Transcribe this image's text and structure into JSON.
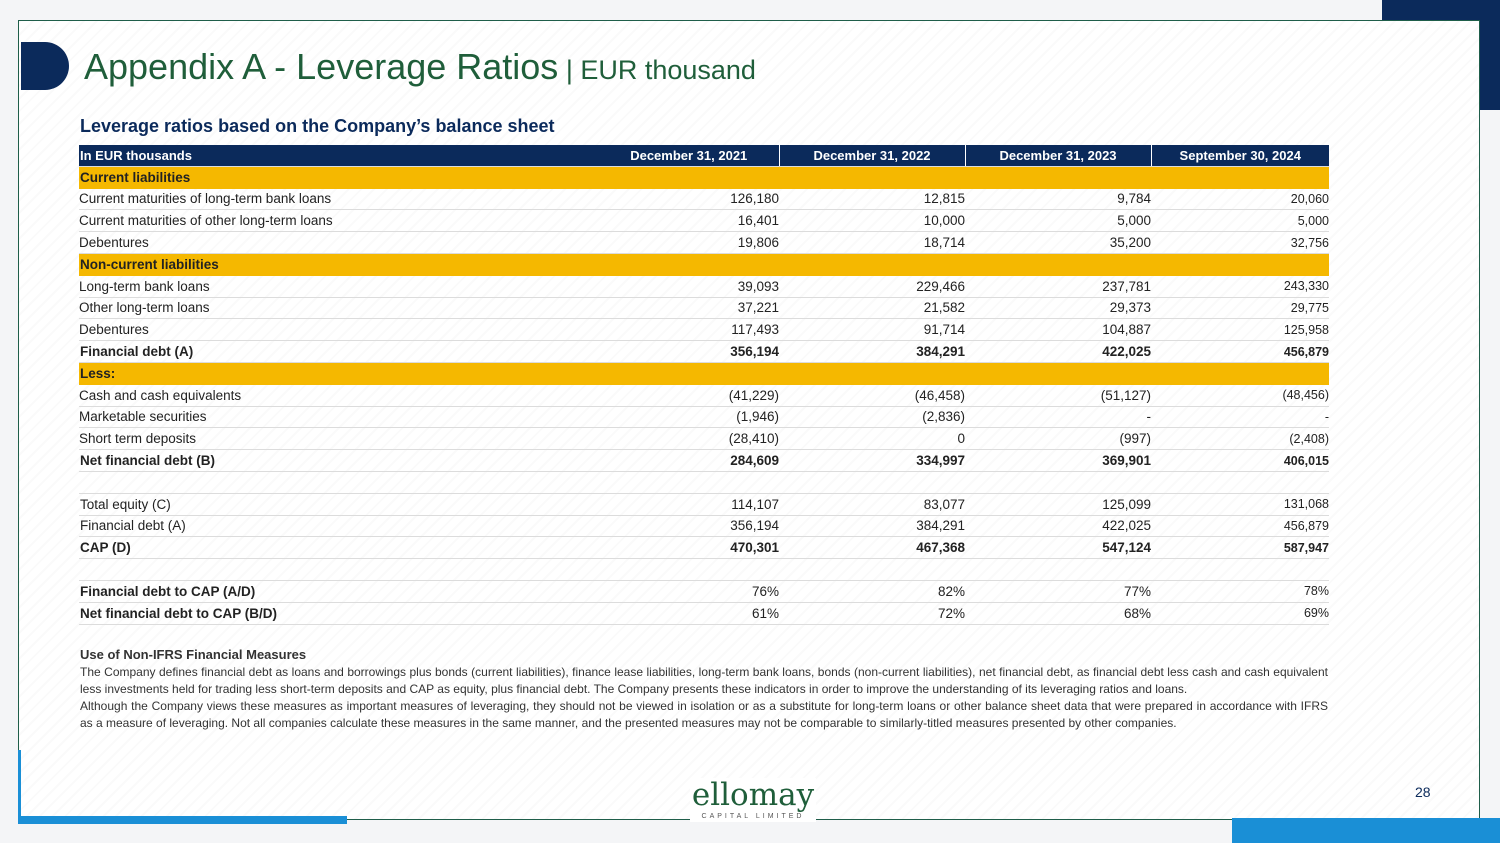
{
  "title": {
    "main": "Appendix A - Leverage Ratios",
    "separator": " | ",
    "sub": "EUR thousand"
  },
  "subtitle": "Leverage ratios based on the Company’s balance sheet",
  "table": {
    "headers": [
      "In EUR thousands",
      "December 31, 2021",
      "December 31, 2022",
      "December 31, 2023",
      "September 30, 2024"
    ],
    "rows": [
      {
        "type": "section",
        "label": "Current liabilities",
        "values": [
          "",
          "",
          "",
          ""
        ]
      },
      {
        "type": "item",
        "label": "Current maturities of long-term bank loans",
        "values": [
          "126,180",
          "12,815",
          "9,784",
          "20,060"
        ]
      },
      {
        "type": "item",
        "label": "Current maturities of other long-term loans",
        "values": [
          "16,401",
          "10,000",
          "5,000",
          "5,000"
        ]
      },
      {
        "type": "item",
        "label": "Debentures",
        "values": [
          "19,806",
          "18,714",
          "35,200",
          "32,756"
        ]
      },
      {
        "type": "section",
        "label": "Non-current liabilities",
        "values": [
          "",
          "",
          "",
          ""
        ]
      },
      {
        "type": "item",
        "label": "Long-term bank loans",
        "values": [
          "39,093",
          "229,466",
          "237,781",
          "243,330"
        ]
      },
      {
        "type": "item",
        "label": "Other long-term loans",
        "values": [
          "37,221",
          "21,582",
          "29,373",
          "29,775"
        ]
      },
      {
        "type": "item",
        "label": "Debentures",
        "values": [
          "117,493",
          "91,714",
          "104,887",
          "125,958"
        ]
      },
      {
        "type": "bold",
        "label": "Financial debt (A)",
        "values": [
          "356,194",
          "384,291",
          "422,025",
          "456,879"
        ]
      },
      {
        "type": "section",
        "label": "Less:",
        "values": [
          "",
          "",
          "",
          ""
        ]
      },
      {
        "type": "item",
        "label": "Cash and cash equivalents",
        "values": [
          "(41,229)",
          "(46,458)",
          "(51,127)",
          "(48,456)"
        ]
      },
      {
        "type": "item",
        "label": "Marketable securities",
        "values": [
          "(1,946)",
          "(2,836)",
          "-",
          "-"
        ]
      },
      {
        "type": "item",
        "label": "Short term deposits",
        "values": [
          "(28,410)",
          "0",
          "(997)",
          "(2,408)"
        ]
      },
      {
        "type": "bold",
        "label": "Net financial debt (B)",
        "values": [
          "284,609",
          "334,997",
          "369,901",
          "406,015"
        ]
      },
      {
        "type": "blank",
        "label": "",
        "values": [
          "",
          "",
          "",
          ""
        ]
      },
      {
        "type": "plain",
        "label": "Total equity (C)",
        "values": [
          "114,107",
          "83,077",
          "125,099",
          "131,068"
        ]
      },
      {
        "type": "plain",
        "label": "Financial debt (A)",
        "values": [
          "356,194",
          "384,291",
          "422,025",
          "456,879"
        ]
      },
      {
        "type": "bold",
        "label": "CAP (D)",
        "values": [
          "470,301",
          "467,368",
          "547,124",
          "587,947"
        ]
      },
      {
        "type": "blank",
        "label": "",
        "values": [
          "",
          "",
          "",
          ""
        ]
      },
      {
        "type": "boldlabel",
        "label": "Financial debt to CAP (A/D)",
        "values": [
          "76%",
          "82%",
          "77%",
          "78%"
        ]
      },
      {
        "type": "boldlabel",
        "label": "Net financial debt to CAP (B/D)",
        "values": [
          "61%",
          "72%",
          "68%",
          "69%"
        ]
      }
    ]
  },
  "notes": {
    "heading": "Use of Non-IFRS Financial Measures",
    "paragraph1": "The Company defines financial debt as loans and borrowings plus bonds (current liabilities), finance lease liabilities, long-term bank loans, bonds (non-current liabilities), net financial debt, as financial debt less cash and cash equivalent less investments held for trading less short-term deposits and CAP as equity, plus financial debt. The Company presents these indicators in order to improve the understanding of its leveraging ratios and loans.",
    "paragraph2": "Although the Company views these measures as important measures of leveraging, they should not be viewed in isolation or as a substitute for long-term loans or other balance sheet data that were prepared in accordance with IFRS as a measure of leveraging. Not all companies calculate these measures in the same manner, and the presented measures may not be comparable to similarly-titled measures presented by other companies."
  },
  "logo": {
    "word": "ellomay",
    "tagline": "CAPITAL LIMITED"
  },
  "page_number": "28",
  "colors": {
    "navy": "#0b2a5b",
    "gold": "#f5b800",
    "green": "#1f5e3a",
    "blue": "#1a8fd6"
  }
}
